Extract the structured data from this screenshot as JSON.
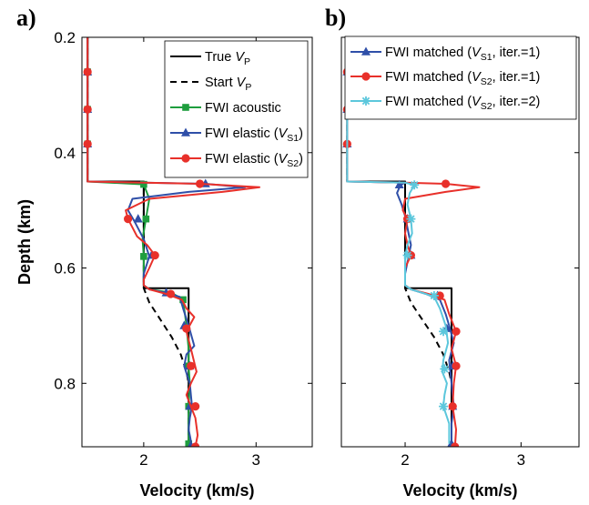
{
  "chart_data": [
    {
      "panel_label": "a)",
      "type": "line",
      "xlabel": "Velocity (km/s)",
      "ylabel": "Depth (km)",
      "xlim": [
        1.45,
        3.5
      ],
      "ylim": [
        0.2,
        0.91
      ],
      "y_inverted": true,
      "xticks": [
        "2",
        "3"
      ],
      "yticks": [
        "0.2",
        "0.4",
        "0.6",
        "0.8"
      ],
      "grid": false,
      "legend_position": "top-right",
      "series": [
        {
          "legend": [
            "True ",
            "V",
            "P",
            ""
          ],
          "color": "#000000",
          "dash": "",
          "marker": "none",
          "x": [
            1.5,
            1.5,
            2.0,
            2.0,
            2.4,
            2.4
          ],
          "y": [
            0.2,
            0.45,
            0.45,
            0.635,
            0.635,
            0.91
          ]
        },
        {
          "legend": [
            "Start ",
            "V",
            "P",
            ""
          ],
          "color": "#000000",
          "dash": "7,5",
          "marker": "none",
          "x": [
            1.5,
            1.5,
            2.0,
            2.0,
            2.05,
            2.15,
            2.25,
            2.33,
            2.38,
            2.4,
            2.4
          ],
          "y": [
            0.2,
            0.45,
            0.45,
            0.635,
            0.66,
            0.69,
            0.72,
            0.75,
            0.78,
            0.8,
            0.91
          ]
        },
        {
          "legend": [
            "FWI acoustic"
          ],
          "color": "#1e9e3e",
          "dash": "",
          "marker": "square",
          "x": [
            1.5,
            1.5,
            1.5,
            1.5,
            1.5,
            2.0,
            2.05,
            2.02,
            1.99,
            2.0,
            2.0,
            2.05,
            2.25,
            2.35,
            2.38,
            2.4,
            2.4,
            2.41,
            2.4,
            2.4,
            2.4
          ],
          "y": [
            0.2,
            0.26,
            0.325,
            0.385,
            0.45,
            0.455,
            0.48,
            0.515,
            0.55,
            0.58,
            0.63,
            0.637,
            0.643,
            0.655,
            0.7,
            0.74,
            0.77,
            0.8,
            0.84,
            0.87,
            0.905
          ],
          "marker_x": [
            1.5,
            1.5,
            1.5,
            2.0,
            2.02,
            2.0,
            2.35,
            2.4,
            2.4,
            2.4
          ],
          "marker_y": [
            0.26,
            0.325,
            0.385,
            0.455,
            0.515,
            0.58,
            0.655,
            0.77,
            0.84,
            0.905
          ]
        },
        {
          "legend": [
            "FWI elastic (",
            "V",
            "S1",
            ")"
          ],
          "color": "#2f4fa8",
          "dash": "",
          "marker": "triangle",
          "x": [
            1.5,
            1.5,
            1.5,
            1.5,
            1.5,
            2.0,
            2.55,
            2.9,
            2.4,
            1.9,
            1.86,
            1.92,
            2.0,
            2.05,
            2.0,
            2.0,
            2.05,
            2.2,
            2.32,
            2.35,
            2.4,
            2.45,
            2.38,
            2.36,
            2.41,
            2.43,
            2.41,
            2.4,
            2.42,
            2.42
          ],
          "y": [
            0.2,
            0.26,
            0.325,
            0.385,
            0.45,
            0.452,
            0.454,
            0.46,
            0.468,
            0.48,
            0.5,
            0.52,
            0.55,
            0.58,
            0.61,
            0.63,
            0.637,
            0.643,
            0.65,
            0.67,
            0.7,
            0.735,
            0.75,
            0.77,
            0.8,
            0.84,
            0.86,
            0.88,
            0.9,
            0.908
          ],
          "marker_x": [
            1.5,
            1.5,
            1.5,
            2.55,
            1.95,
            2.07,
            2.2,
            2.36,
            2.41,
            2.41,
            2.42
          ],
          "marker_y": [
            0.26,
            0.325,
            0.385,
            0.454,
            0.515,
            0.578,
            0.643,
            0.7,
            0.77,
            0.84,
            0.908
          ]
        },
        {
          "legend": [
            "FWI elastic (",
            "V",
            "S2",
            ")"
          ],
          "color": "#e8302a",
          "dash": "",
          "marker": "circle",
          "x": [
            1.5,
            1.5,
            1.5,
            1.5,
            1.5,
            2.0,
            2.5,
            3.03,
            2.7,
            2.05,
            1.84,
            1.86,
            1.94,
            2.03,
            2.1,
            2.05,
            2.0,
            2.0,
            2.05,
            2.2,
            2.34,
            2.38,
            2.45,
            2.38,
            2.42,
            2.47,
            2.42,
            2.38,
            2.42,
            2.46,
            2.48,
            2.46
          ],
          "y": [
            0.2,
            0.26,
            0.325,
            0.385,
            0.45,
            0.452,
            0.454,
            0.46,
            0.468,
            0.48,
            0.5,
            0.515,
            0.545,
            0.56,
            0.578,
            0.6,
            0.62,
            0.63,
            0.637,
            0.645,
            0.655,
            0.67,
            0.685,
            0.71,
            0.74,
            0.78,
            0.8,
            0.82,
            0.84,
            0.86,
            0.89,
            0.91
          ],
          "marker_x": [
            1.5,
            1.5,
            1.5,
            2.5,
            1.86,
            2.1,
            2.24,
            2.38,
            2.42,
            2.46,
            2.46
          ],
          "marker_y": [
            0.26,
            0.325,
            0.385,
            0.454,
            0.515,
            0.578,
            0.645,
            0.705,
            0.77,
            0.84,
            0.91
          ]
        }
      ]
    },
    {
      "panel_label": "b)",
      "type": "line",
      "xlabel": "Velocity (km/s)",
      "ylabel": "",
      "xlim": [
        1.45,
        3.5
      ],
      "ylim": [
        0.2,
        0.91
      ],
      "y_inverted": true,
      "xticks": [
        "2",
        "3"
      ],
      "yticks": [],
      "grid": false,
      "legend_position": "top-right",
      "series": [
        {
          "legend": [],
          "color": "#000000",
          "dash": "",
          "marker": "none",
          "x": [
            1.5,
            1.5,
            2.0,
            2.0,
            2.4,
            2.4
          ],
          "y": [
            0.2,
            0.45,
            0.45,
            0.635,
            0.635,
            0.91
          ]
        },
        {
          "legend": [],
          "color": "#000000",
          "dash": "7,5",
          "marker": "none",
          "x": [
            1.5,
            1.5,
            2.0,
            2.0,
            2.05,
            2.15,
            2.25,
            2.33,
            2.38,
            2.4,
            2.4
          ],
          "y": [
            0.2,
            0.45,
            0.45,
            0.635,
            0.66,
            0.69,
            0.72,
            0.75,
            0.78,
            0.8,
            0.91
          ]
        },
        {
          "legend": [
            "FWI matched (",
            "V",
            "S1",
            ", iter.=1)"
          ],
          "color": "#2f4fa8",
          "dash": "",
          "marker": "triangle",
          "x": [
            1.5,
            1.5,
            1.5,
            1.5,
            1.5,
            2.0,
            1.96,
            1.93,
            1.97,
            2.0,
            2.03,
            2.05,
            2.03,
            2.0,
            2.0,
            2.05,
            2.18,
            2.3,
            2.35,
            2.38,
            2.42,
            2.38,
            2.4,
            2.42,
            2.4,
            2.4
          ],
          "y": [
            0.2,
            0.26,
            0.325,
            0.385,
            0.45,
            0.452,
            0.456,
            0.47,
            0.49,
            0.51,
            0.54,
            0.56,
            0.58,
            0.61,
            0.63,
            0.637,
            0.645,
            0.655,
            0.68,
            0.7,
            0.73,
            0.76,
            0.8,
            0.84,
            0.87,
            0.905
          ],
          "marker_x": [
            1.5,
            1.5,
            1.5,
            1.95,
            2.02,
            2.05,
            2.28,
            2.36,
            2.41,
            2.41,
            2.4
          ],
          "marker_y": [
            0.26,
            0.325,
            0.385,
            0.456,
            0.515,
            0.578,
            0.648,
            0.705,
            0.77,
            0.84,
            0.905
          ]
        },
        {
          "legend": [
            "FWI matched (",
            "V",
            "S2",
            ", iter.=1)"
          ],
          "color": "#e8302a",
          "dash": "",
          "marker": "circle",
          "x": [
            1.5,
            1.5,
            1.5,
            1.5,
            1.5,
            2.0,
            2.35,
            2.64,
            2.35,
            2.0,
            1.98,
            2.02,
            2.0,
            2.02,
            2.05,
            2.0,
            2.0,
            2.05,
            2.2,
            2.34,
            2.38,
            2.44,
            2.4,
            2.44,
            2.42,
            2.41,
            2.44,
            2.43
          ],
          "y": [
            0.2,
            0.26,
            0.325,
            0.385,
            0.45,
            0.452,
            0.454,
            0.46,
            0.468,
            0.48,
            0.5,
            0.515,
            0.54,
            0.56,
            0.578,
            0.6,
            0.63,
            0.637,
            0.645,
            0.655,
            0.68,
            0.71,
            0.74,
            0.77,
            0.8,
            0.84,
            0.88,
            0.91
          ],
          "marker_x": [
            1.5,
            1.5,
            1.5,
            2.35,
            2.02,
            2.05,
            2.3,
            2.44,
            2.44,
            2.41,
            2.43
          ],
          "marker_y": [
            0.26,
            0.325,
            0.385,
            0.454,
            0.515,
            0.578,
            0.648,
            0.71,
            0.77,
            0.84,
            0.91
          ]
        },
        {
          "legend": [
            "FWI matched (",
            "V",
            "S2",
            ", iter.=2)"
          ],
          "color": "#5cc7dc",
          "dash": "",
          "marker": "star",
          "x": [
            1.5,
            1.5,
            1.5,
            1.5,
            1.5,
            2.0,
            2.08,
            2.04,
            2.02,
            2.05,
            2.06,
            2.02,
            2.0,
            2.0,
            2.05,
            2.15,
            2.25,
            2.3,
            2.35,
            2.37,
            2.33,
            2.32,
            2.36,
            2.34,
            2.33,
            2.38,
            2.38
          ],
          "y": [
            0.2,
            0.26,
            0.325,
            0.385,
            0.45,
            0.452,
            0.456,
            0.47,
            0.49,
            0.515,
            0.54,
            0.56,
            0.58,
            0.63,
            0.637,
            0.643,
            0.65,
            0.67,
            0.7,
            0.73,
            0.76,
            0.78,
            0.8,
            0.82,
            0.84,
            0.87,
            0.905
          ],
          "marker_x": [
            2.08,
            2.05,
            2.02,
            2.25,
            2.33,
            2.34,
            2.33
          ],
          "marker_y": [
            0.456,
            0.515,
            0.578,
            0.648,
            0.71,
            0.775,
            0.84
          ]
        }
      ]
    }
  ]
}
